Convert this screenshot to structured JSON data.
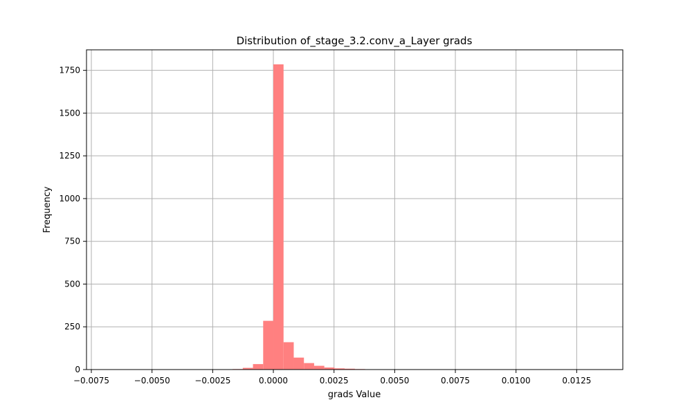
{
  "chart_data": {
    "type": "bar",
    "title": "Distribution of_stage_3.2.conv_a_Layer grads",
    "xlabel": "grads Value",
    "ylabel": "Frequency",
    "xlim": [
      -0.0077,
      0.0144
    ],
    "ylim": [
      0,
      1870
    ],
    "grid": true,
    "bar_color": "#ff8080",
    "xticks": [
      -0.0075,
      -0.005,
      -0.0025,
      0.0,
      0.0025,
      0.005,
      0.0075,
      0.01,
      0.0125
    ],
    "xtick_labels": [
      "−0.0075",
      "−0.0050",
      "−0.0025",
      "0.0000",
      "0.0025",
      "0.0050",
      "0.0075",
      "0.0100",
      "0.0125"
    ],
    "yticks": [
      0,
      250,
      500,
      750,
      1000,
      1250,
      1500,
      1750
    ],
    "ytick_labels": [
      "0",
      "250",
      "500",
      "750",
      "1000",
      "1250",
      "1500",
      "1750"
    ],
    "bin_width": 0.00042,
    "bins": [
      {
        "x0": -0.0021,
        "value": 1
      },
      {
        "x0": -0.00168,
        "value": 3
      },
      {
        "x0": -0.00126,
        "value": 10
      },
      {
        "x0": -0.00084,
        "value": 32
      },
      {
        "x0": -0.00042,
        "value": 285
      },
      {
        "x0": 0.0,
        "value": 1785
      },
      {
        "x0": 0.00042,
        "value": 160
      },
      {
        "x0": 0.00084,
        "value": 70
      },
      {
        "x0": 0.00126,
        "value": 38
      },
      {
        "x0": 0.00168,
        "value": 22
      },
      {
        "x0": 0.0021,
        "value": 12
      },
      {
        "x0": 0.00252,
        "value": 7
      },
      {
        "x0": 0.00294,
        "value": 5
      },
      {
        "x0": 0.00336,
        "value": 3
      },
      {
        "x0": 0.00378,
        "value": 2
      },
      {
        "x0": 0.0042,
        "value": 1
      }
    ]
  }
}
